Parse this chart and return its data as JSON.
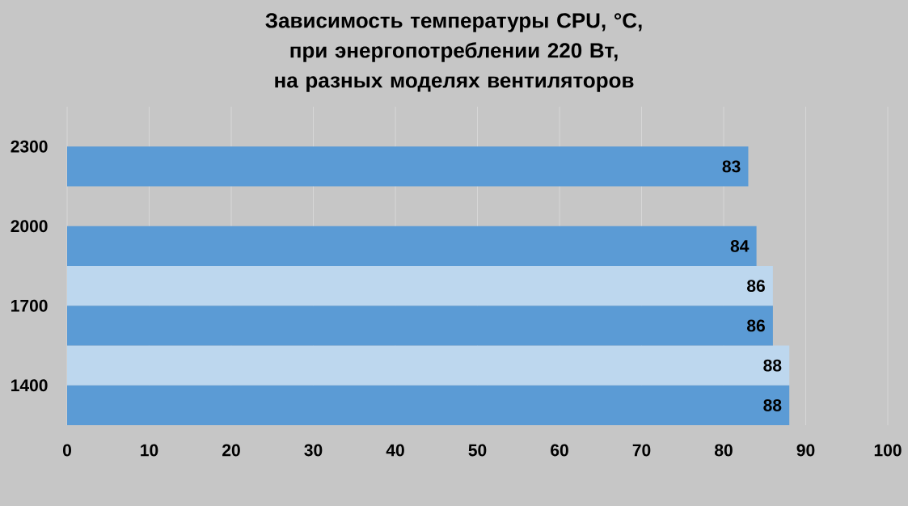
{
  "chart_data": {
    "type": "bar",
    "orientation": "horizontal",
    "title": "Зависимость температуры CPU, °C, при энергопотреблении 220 Вт, на разных моделях вентиляторов",
    "categories": [
      "2300",
      "2000",
      "1700",
      "1400"
    ],
    "series": [
      {
        "color": "#bdd7ee",
        "values": [
          null,
          null,
          86,
          88
        ]
      },
      {
        "color": "#5b9bd5",
        "values": [
          83,
          84,
          86,
          88
        ]
      }
    ],
    "xlim": [
      0,
      100
    ],
    "xticks": [
      0,
      10,
      20,
      30,
      40,
      50,
      60,
      70,
      80,
      90,
      100
    ],
    "grid": "x",
    "data_labels": true
  }
}
